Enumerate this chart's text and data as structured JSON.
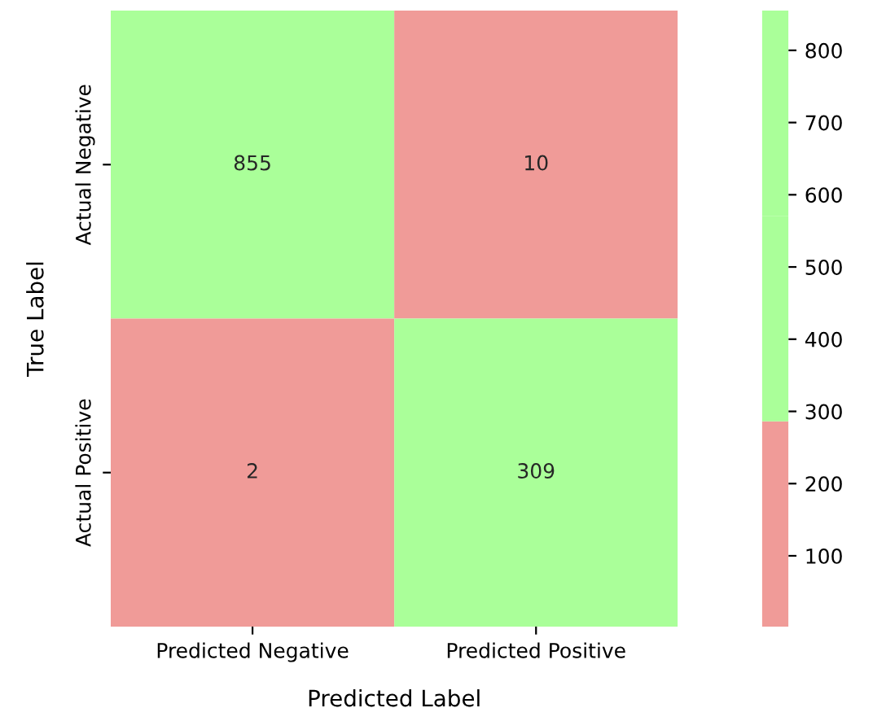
{
  "chart_data": {
    "type": "heatmap",
    "xlabel": "Predicted Label",
    "ylabel": "True Label",
    "categories": [
      "Predicted Negative",
      "Predicted Positive"
    ],
    "y_categories": [
      "Actual Negative",
      "Actual Positive"
    ],
    "cells": [
      [
        855,
        10
      ],
      [
        2,
        309
      ]
    ],
    "colors": [
      "#f09b98",
      "#aaff99",
      "#aaff99"
    ],
    "clim": [
      2,
      855
    ],
    "cticks": [
      100,
      200,
      300,
      400,
      500,
      600,
      700,
      800
    ],
    "data_labels": true
  }
}
